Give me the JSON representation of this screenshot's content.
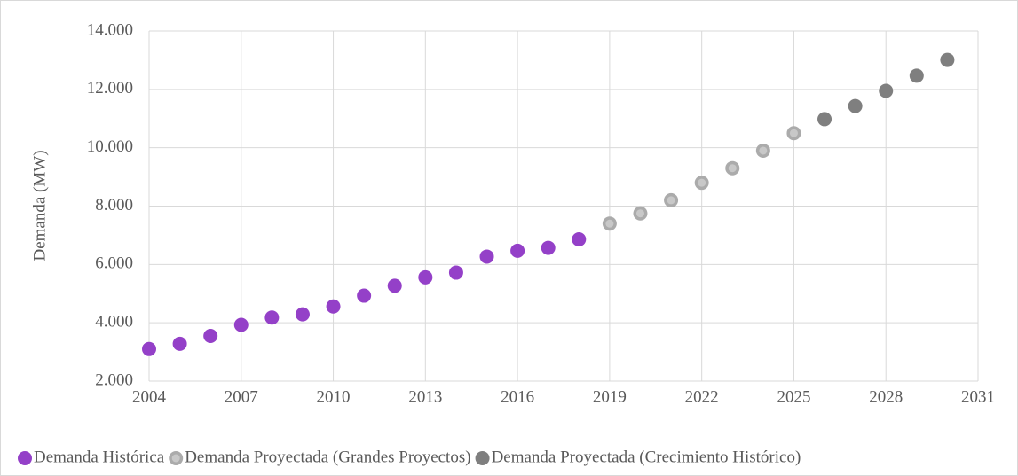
{
  "chart_data": {
    "type": "scatter",
    "y_label": "Demanda (MW)",
    "xlim": [
      2004,
      2031
    ],
    "xticks": [
      2004,
      2007,
      2010,
      2013,
      2016,
      2019,
      2022,
      2025,
      2028,
      2031
    ],
    "ylim": [
      2000,
      14000
    ],
    "yticks": [
      {
        "value": 2000,
        "label": "2.000"
      },
      {
        "value": 4000,
        "label": "4.000"
      },
      {
        "value": 6000,
        "label": "6.000"
      },
      {
        "value": 8000,
        "label": "8.000"
      },
      {
        "value": 10000,
        "label": "10.000"
      },
      {
        "value": 12000,
        "label": "12.000"
      },
      {
        "value": 14000,
        "label": "14.000"
      }
    ],
    "grid": true,
    "legend": "bottom",
    "series": [
      {
        "name": "Demanda Histórica",
        "color": "#9440c8",
        "x": [
          2004,
          2005,
          2006,
          2007,
          2008,
          2009,
          2010,
          2011,
          2012,
          2013,
          2014,
          2015,
          2016,
          2017,
          2018
        ],
        "values": [
          3100,
          3280,
          3550,
          3930,
          4180,
          4290,
          4560,
          4930,
          5270,
          5560,
          5720,
          6270,
          6470,
          6570,
          6860
        ]
      },
      {
        "name": "Demanda Proyectada (Grandes Proyectos)",
        "color": "#ababab",
        "x": [
          2019,
          2020,
          2021,
          2022,
          2023,
          2024,
          2025
        ],
        "values": [
          7400,
          7750,
          8200,
          8800,
          9300,
          9900,
          10500
        ]
      },
      {
        "name": "Demanda Proyectada (Crecimiento Histórico)",
        "color": "#7f7f7f",
        "x": [
          2026,
          2027,
          2028,
          2029,
          2030
        ],
        "values": [
          10980,
          11430,
          11950,
          12470,
          13010
        ]
      }
    ]
  }
}
